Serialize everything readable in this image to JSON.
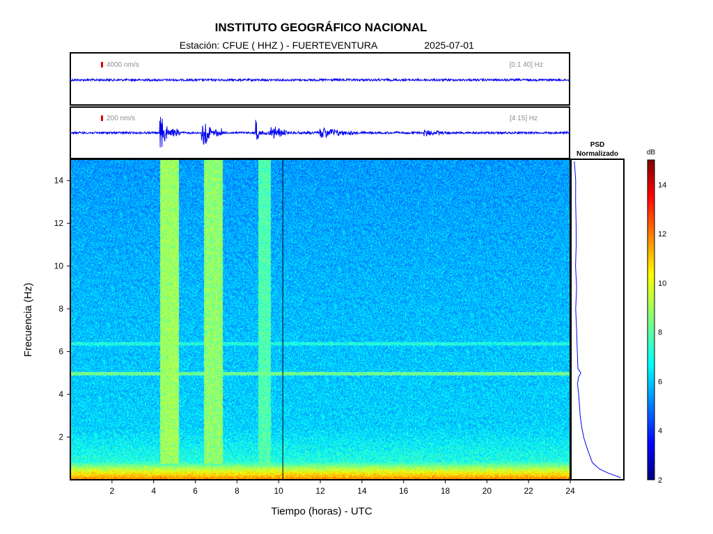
{
  "header": {
    "title": "INSTITUTO GEOGRÁFICO NACIONAL",
    "station_label": "Estación:  CFUE ( HHZ ) - FUERTEVENTURA",
    "date": "2025-07-01"
  },
  "colors": {
    "trace": "#0000ee",
    "scale_marker": "#dd0000",
    "frame": "#000000",
    "annotation": "#8c8c8c"
  },
  "chart_data": [
    {
      "type": "line",
      "panel": "trace-broadband",
      "scale_label": "4000 nm/s",
      "filter_label": "[0.1 40] Hz",
      "x_range": [
        0,
        24
      ],
      "x_units": "hours UTC",
      "description_values": {
        "baseline_amplitude": 0.05
      },
      "bursts": []
    },
    {
      "type": "line",
      "panel": "trace-filtered",
      "scale_label": "200 nm/s",
      "filter_label": "[4 15] Hz",
      "x_range": [
        0,
        24
      ],
      "x_units": "hours UTC",
      "bursts": [
        {
          "start": 4.3,
          "end": 5.3,
          "amp": 0.9
        },
        {
          "start": 6.3,
          "end": 7.4,
          "amp": 1.0
        },
        {
          "start": 8.9,
          "end": 9.6,
          "amp": 0.45
        },
        {
          "start": 9.6,
          "end": 12.0,
          "amp": 0.3
        },
        {
          "start": 12.0,
          "end": 17.0,
          "amp": 0.22
        },
        {
          "start": 17.0,
          "end": 22.2,
          "amp": 0.13
        }
      ]
    },
    {
      "type": "heatmap",
      "panel": "spectrogram",
      "xlabel": "Tiempo (horas) - UTC",
      "ylabel": "Frecuencia  (Hz)",
      "xlim": [
        0,
        24
      ],
      "ylim": [
        0,
        15
      ],
      "xticks": [
        2,
        4,
        6,
        8,
        10,
        12,
        14,
        16,
        18,
        20,
        22,
        24
      ],
      "yticks": [
        2,
        4,
        6,
        8,
        10,
        12,
        14
      ],
      "marker_time": 10.2,
      "value_units": "dB",
      "approx_level_db": {
        "high_band": 6.5,
        "low_band_below_0_5_hz": 12
      },
      "features": [
        {
          "kind": "time_band",
          "start": 4.3,
          "end": 5.2,
          "level_db": 9
        },
        {
          "kind": "time_band",
          "start": 6.4,
          "end": 7.3,
          "level_db": 8.8
        },
        {
          "kind": "time_band",
          "start": 9.0,
          "end": 9.6,
          "level_db": 8
        },
        {
          "kind": "freq_line",
          "freq": 5.0,
          "level_db": 8.3
        },
        {
          "kind": "freq_line",
          "freq": 6.4,
          "level_db": 7.2
        }
      ]
    },
    {
      "type": "line",
      "panel": "psd",
      "title_line1": "PSD",
      "title_line2": "Normalizado",
      "ylim": [
        0,
        15
      ],
      "points": [
        [
          0.1,
          1.0
        ],
        [
          0.3,
          0.75
        ],
        [
          0.5,
          0.55
        ],
        [
          0.8,
          0.42
        ],
        [
          1.2,
          0.34
        ],
        [
          1.6,
          0.28
        ],
        [
          2.0,
          0.24
        ],
        [
          2.5,
          0.2
        ],
        [
          3.0,
          0.17
        ],
        [
          3.5,
          0.15
        ],
        [
          4.0,
          0.13
        ],
        [
          4.5,
          0.12
        ],
        [
          4.8,
          0.13
        ],
        [
          5.0,
          0.18
        ],
        [
          5.2,
          0.12
        ],
        [
          6.0,
          0.1
        ],
        [
          7.0,
          0.09
        ],
        [
          8.0,
          0.08
        ],
        [
          9.0,
          0.08
        ],
        [
          10.0,
          0.07
        ],
        [
          11.0,
          0.07
        ],
        [
          12.0,
          0.065
        ],
        [
          13.0,
          0.06
        ],
        [
          14.0,
          0.06
        ],
        [
          14.9,
          0.05
        ]
      ]
    },
    {
      "type": "heatmap",
      "panel": "colorbar",
      "units_label": "dB",
      "range": [
        2,
        15
      ],
      "ticks": [
        2,
        4,
        6,
        8,
        10,
        12,
        14
      ]
    }
  ]
}
